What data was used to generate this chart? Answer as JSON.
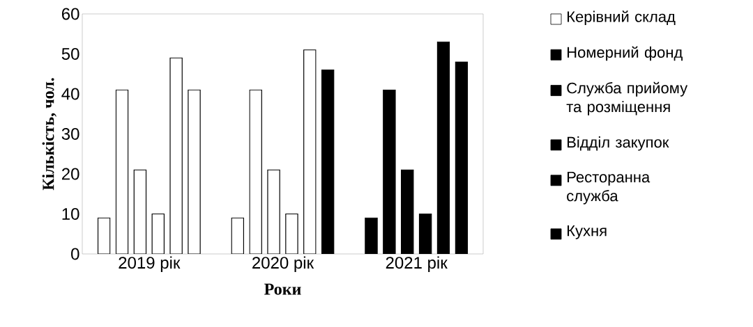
{
  "chart_data": {
    "type": "bar",
    "xlabel": "Роки",
    "ylabel": "Кількість, чол.",
    "categories": [
      "2019 рік",
      "2020 рік",
      "2021 рік"
    ],
    "series": [
      {
        "name": "Керівний склад",
        "color": "#ffffff",
        "colors": [
          "#ffffff",
          "#ffffff",
          "#000000"
        ],
        "values": [
          9,
          9,
          9
        ]
      },
      {
        "name": "Номерний фонд",
        "color": "#000000",
        "colors": [
          "#ffffff",
          "#ffffff",
          "#000000"
        ],
        "values": [
          41,
          41,
          41
        ]
      },
      {
        "name": "Служба прийому та розміщення",
        "color": "#000000",
        "colors": [
          "#ffffff",
          "#ffffff",
          "#000000"
        ],
        "values": [
          21,
          21,
          21
        ]
      },
      {
        "name": "Відділ закупок",
        "color": "#000000",
        "colors": [
          "#ffffff",
          "#ffffff",
          "#000000"
        ],
        "values": [
          10,
          10,
          10
        ]
      },
      {
        "name": "Ресторанна служба",
        "color": "#000000",
        "colors": [
          "#ffffff",
          "#ffffff",
          "#000000"
        ],
        "values": [
          49,
          51,
          53
        ]
      },
      {
        "name": "Кухня",
        "color": "#000000",
        "colors": [
          "#ffffff",
          "#000000",
          "#000000"
        ],
        "values": [
          41,
          46,
          48
        ]
      }
    ],
    "ylim": [
      0,
      60
    ],
    "yticks": [
      0,
      10,
      20,
      30,
      40,
      50,
      60
    ],
    "grid": false,
    "legend": "right"
  }
}
